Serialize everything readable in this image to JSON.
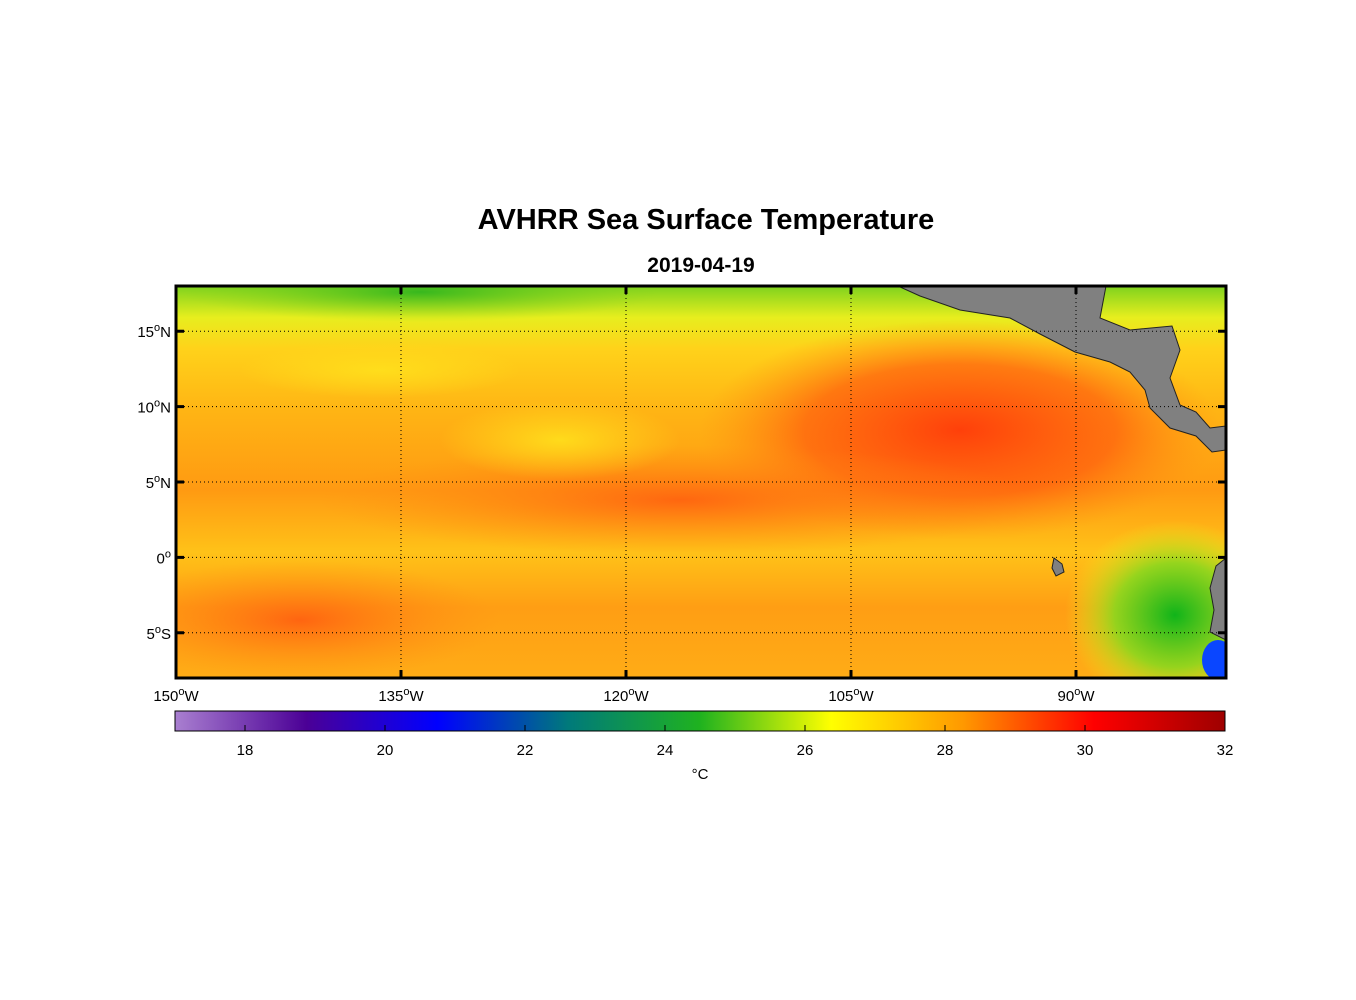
{
  "title": "AVHRR Sea Surface Temperature",
  "subtitle": "2019-04-19",
  "map": {
    "lon_range": [
      -150,
      -80
    ],
    "lat_range": [
      -8,
      18
    ],
    "lon_ticks": [
      {
        "value": -150,
        "deg": "150",
        "hemi": "W"
      },
      {
        "value": -135,
        "deg": "135",
        "hemi": "W"
      },
      {
        "value": -120,
        "deg": "120",
        "hemi": "W"
      },
      {
        "value": -105,
        "deg": "105",
        "hemi": "W"
      },
      {
        "value": -90,
        "deg": "90",
        "hemi": "W"
      }
    ],
    "lat_ticks": [
      {
        "value": 15,
        "deg": "15",
        "hemi": "N"
      },
      {
        "value": 10,
        "deg": "10",
        "hemi": "N"
      },
      {
        "value": 5,
        "deg": "5",
        "hemi": "N"
      },
      {
        "value": 0,
        "deg": "0",
        "hemi": ""
      },
      {
        "value": -5,
        "deg": "5",
        "hemi": "S"
      }
    ],
    "grid": "dotted",
    "land_color": "#808080"
  },
  "colorbar": {
    "min": 17,
    "max": 32,
    "ticks": [
      18,
      20,
      22,
      24,
      26,
      28,
      30,
      32
    ],
    "unit": "°C",
    "colors": [
      "#a97fd0",
      "#4b0096",
      "#0000ff",
      "#007a7a",
      "#1fb21f",
      "#ffff00",
      "#ff9900",
      "#ff0000",
      "#9e0000"
    ]
  }
}
